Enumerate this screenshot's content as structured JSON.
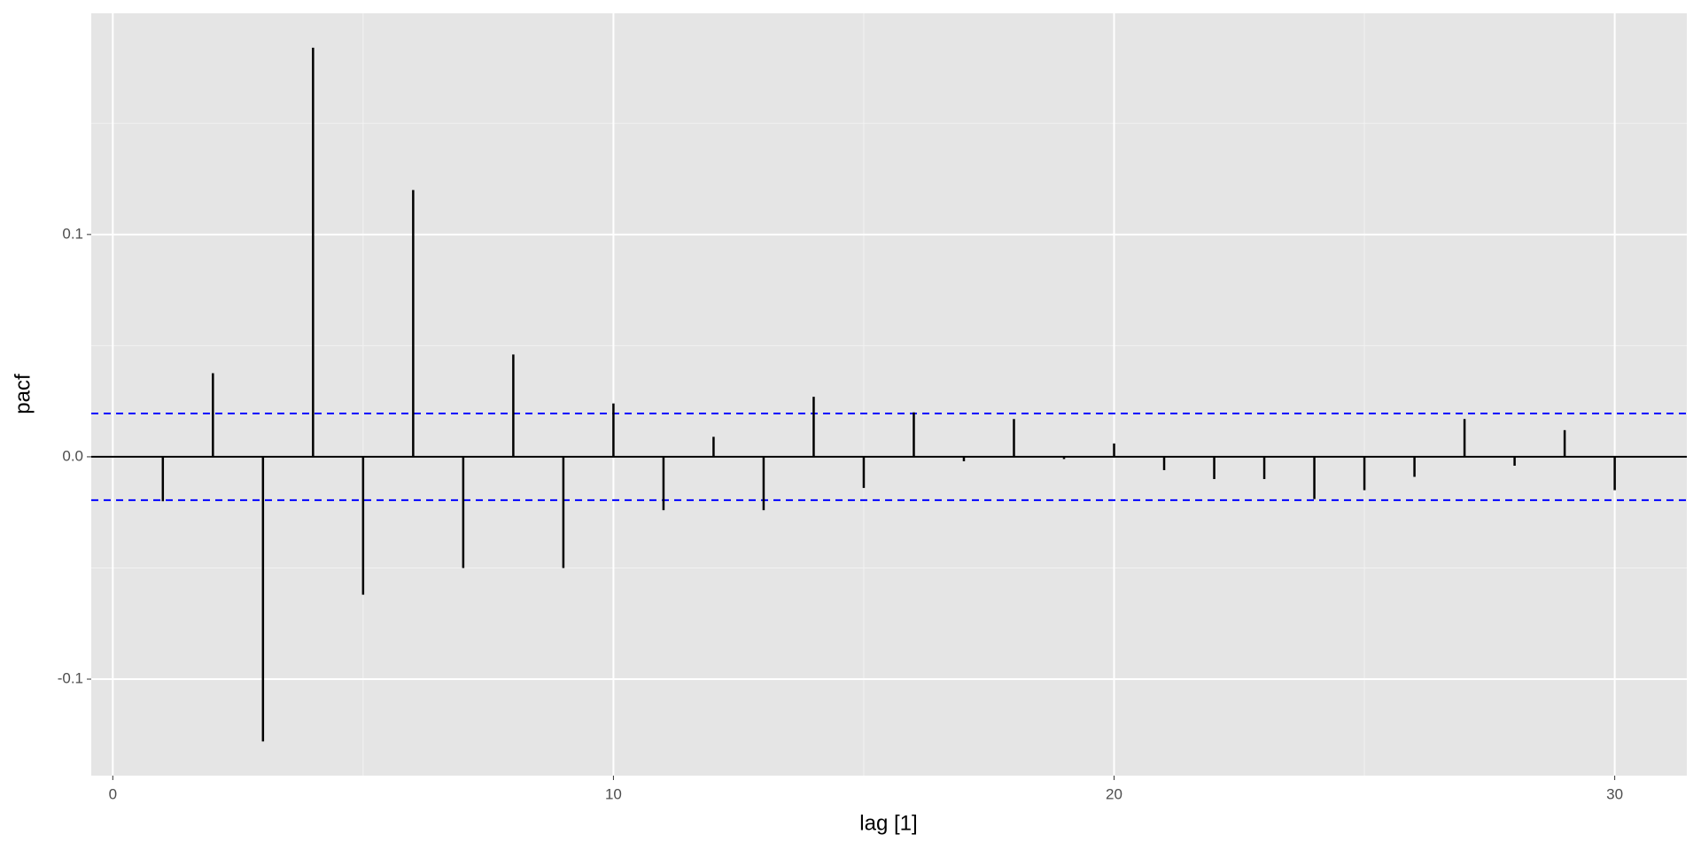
{
  "chart_data": {
    "type": "stem",
    "x_label": "lag [1]",
    "y_label": "pacf",
    "x": [
      1,
      2,
      3,
      4,
      5,
      6,
      7,
      8,
      9,
      10,
      11,
      12,
      13,
      14,
      15,
      16,
      17,
      18,
      19,
      20,
      21,
      22,
      23,
      24,
      25,
      26,
      27,
      28,
      29,
      30
    ],
    "values": [
      -0.02,
      0.0376,
      -0.128,
      0.184,
      -0.062,
      0.12,
      -0.05,
      0.046,
      -0.05,
      0.024,
      -0.024,
      0.009,
      -0.024,
      0.027,
      -0.014,
      0.02,
      -0.002,
      0.017,
      -0.001,
      0.006,
      -0.006,
      -0.01,
      -0.01,
      -0.019,
      -0.015,
      -0.009,
      0.017,
      -0.004,
      0.012,
      -0.015
    ],
    "color": "#000000",
    "bounds": [
      0.0195,
      -0.0195
    ],
    "bounds_color": "#0000ff",
    "xlim": [
      -0.43,
      31.44
    ],
    "ylim": [
      -0.1434,
      0.1995
    ],
    "xticks": [
      0,
      10,
      20,
      30
    ],
    "yticks": [
      -0.1,
      {
        "value": 0,
        "label": "0.0"
      },
      0.1
    ],
    "x_minor_grid": [
      5,
      15,
      25
    ],
    "y_minor_grid": [
      -0.05,
      0.05,
      0.15
    ],
    "grid": true
  }
}
